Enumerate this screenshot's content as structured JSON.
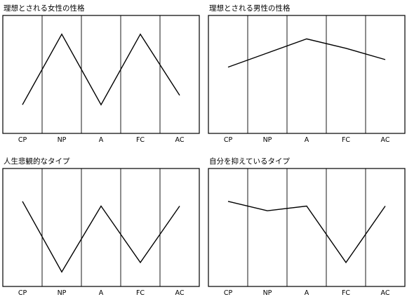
{
  "chart_data": [
    {
      "type": "line",
      "title": "理想とされる女性の性格",
      "categories": [
        "CP",
        "NP",
        "A",
        "FC",
        "AC"
      ],
      "values": [
        20,
        95,
        20,
        95,
        30
      ],
      "ylim": [
        0,
        100
      ],
      "grid": true
    },
    {
      "type": "line",
      "title": "理想とされる男性の性格",
      "categories": [
        "CP",
        "NP",
        "A",
        "FC",
        "AC"
      ],
      "values": [
        60,
        75,
        90,
        80,
        68
      ],
      "ylim": [
        0,
        100
      ],
      "grid": true
    },
    {
      "type": "line",
      "title": "人生悲観的なタイプ",
      "categories": [
        "CP",
        "NP",
        "A",
        "FC",
        "AC"
      ],
      "values": [
        80,
        5,
        75,
        15,
        75
      ],
      "ylim": [
        0,
        100
      ],
      "grid": true
    },
    {
      "type": "line",
      "title": "自分を抑えているタイプ",
      "categories": [
        "CP",
        "NP",
        "A",
        "FC",
        "AC"
      ],
      "values": [
        80,
        70,
        75,
        15,
        75
      ],
      "ylim": [
        0,
        100
      ],
      "grid": true
    }
  ]
}
